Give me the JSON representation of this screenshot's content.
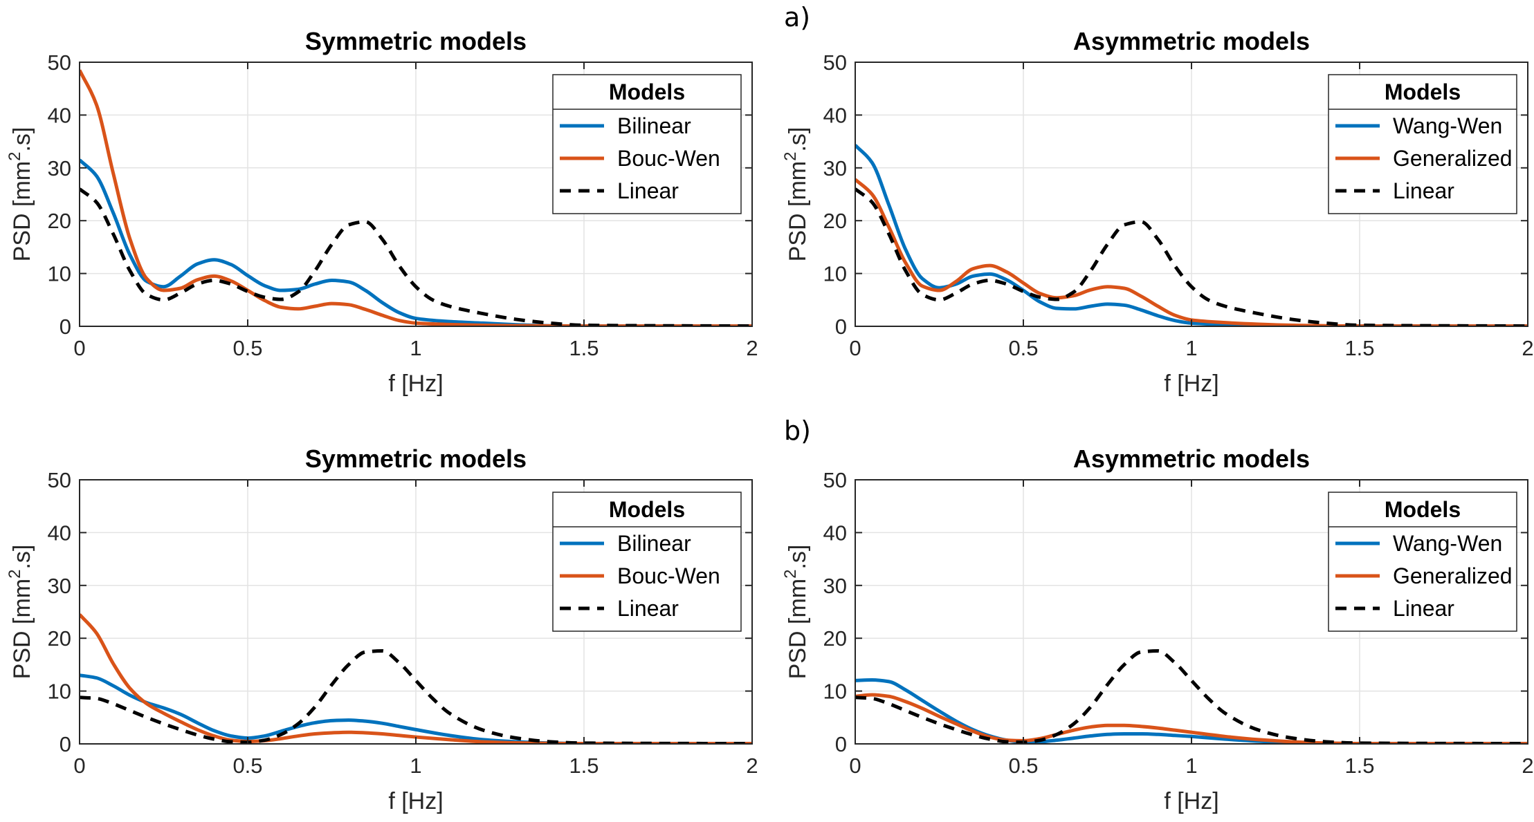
{
  "chart_data": [
    {
      "type": "line",
      "panel_label": "",
      "title": "Symmetric models",
      "xlabel": "f [Hz]",
      "ylabel_main": "PSD [mm",
      "ylabel_sup": "2",
      "ylabel_tail": ".s]",
      "xlim": [
        0,
        2
      ],
      "ylim": [
        0,
        50
      ],
      "xticks": [
        0,
        0.5,
        1,
        1.5,
        2
      ],
      "xtick_labels": [
        "0",
        "0.5",
        "1",
        "1.5",
        "2"
      ],
      "yticks": [
        0,
        10,
        20,
        30,
        40,
        50
      ],
      "ytick_labels": [
        "0",
        "10",
        "20",
        "30",
        "40",
        "50"
      ],
      "grid": true,
      "legend": {
        "title": "Models",
        "position": "top-right"
      },
      "series": [
        {
          "name": "Bilinear",
          "color": "#0072BD",
          "dash": "solid",
          "x": [
            0,
            0.05,
            0.1,
            0.15,
            0.2,
            0.25,
            0.3,
            0.35,
            0.4,
            0.45,
            0.5,
            0.55,
            0.6,
            0.65,
            0.7,
            0.75,
            0.8,
            0.85,
            0.9,
            0.95,
            1.0,
            1.1,
            1.2,
            1.3,
            1.4,
            1.5,
            2.0
          ],
          "y": [
            31.5,
            28.5,
            21.5,
            13.5,
            8.5,
            7.5,
            9.5,
            11.8,
            12.6,
            11.7,
            9.6,
            7.7,
            6.8,
            7.0,
            8.0,
            8.7,
            8.4,
            6.8,
            4.5,
            2.6,
            1.5,
            0.9,
            0.6,
            0.3,
            0.1,
            0.05,
            0.05
          ]
        },
        {
          "name": "Bouc-Wen",
          "color": "#D95319",
          "dash": "solid",
          "x": [
            0,
            0.05,
            0.1,
            0.15,
            0.2,
            0.25,
            0.3,
            0.35,
            0.4,
            0.45,
            0.5,
            0.55,
            0.6,
            0.65,
            0.7,
            0.75,
            0.8,
            0.85,
            0.9,
            0.95,
            1.0,
            1.1,
            1.2,
            1.3,
            1.4,
            1.5,
            2.0
          ],
          "y": [
            48.5,
            42.0,
            29.0,
            16.5,
            9.0,
            6.8,
            7.2,
            8.8,
            9.5,
            8.6,
            6.8,
            4.9,
            3.6,
            3.3,
            3.8,
            4.3,
            4.1,
            3.2,
            2.1,
            1.1,
            0.6,
            0.35,
            0.2,
            0.12,
            0.08,
            0.05,
            0.05
          ]
        },
        {
          "name": "Linear",
          "color": "#000000",
          "dash": "dashed",
          "x": [
            0,
            0.05,
            0.1,
            0.15,
            0.2,
            0.25,
            0.3,
            0.35,
            0.4,
            0.45,
            0.5,
            0.55,
            0.6,
            0.65,
            0.7,
            0.75,
            0.8,
            0.85,
            0.9,
            0.95,
            1.0,
            1.05,
            1.1,
            1.2,
            1.3,
            1.4,
            1.5,
            2.0
          ],
          "y": [
            26.0,
            23.5,
            17.5,
            10.5,
            6.0,
            5.0,
            6.3,
            8.0,
            8.7,
            8.0,
            6.6,
            5.5,
            5.1,
            6.5,
            10.5,
            15.5,
            19.2,
            19.8,
            16.5,
            11.5,
            7.5,
            5.0,
            3.8,
            2.4,
            1.3,
            0.6,
            0.2,
            0.05
          ]
        }
      ]
    },
    {
      "type": "line",
      "panel_label": "a)",
      "title": "Asymmetric models",
      "xlabel": "f [Hz]",
      "ylabel_main": "PSD [mm",
      "ylabel_sup": "2",
      "ylabel_tail": ".s]",
      "xlim": [
        0,
        2
      ],
      "ylim": [
        0,
        50
      ],
      "xticks": [
        0,
        0.5,
        1,
        1.5,
        2
      ],
      "xtick_labels": [
        "0",
        "0.5",
        "1",
        "1.5",
        "2"
      ],
      "yticks": [
        0,
        10,
        20,
        30,
        40,
        50
      ],
      "ytick_labels": [
        "0",
        "10",
        "20",
        "30",
        "40",
        "50"
      ],
      "grid": true,
      "legend": {
        "title": "Models",
        "position": "top-right"
      },
      "series": [
        {
          "name": "Wang-Wen",
          "color": "#0072BD",
          "dash": "solid",
          "x": [
            0,
            0.05,
            0.1,
            0.15,
            0.2,
            0.25,
            0.3,
            0.35,
            0.4,
            0.45,
            0.5,
            0.55,
            0.6,
            0.65,
            0.7,
            0.75,
            0.8,
            0.85,
            0.9,
            0.95,
            1.0,
            1.1,
            1.2,
            1.3,
            1.4,
            1.5,
            2.0
          ],
          "y": [
            34.3,
            31.0,
            23.0,
            14.5,
            9.0,
            7.3,
            8.0,
            9.5,
            9.9,
            8.8,
            6.8,
            4.6,
            3.4,
            3.3,
            3.8,
            4.2,
            4.0,
            3.1,
            2.0,
            1.1,
            0.6,
            0.35,
            0.2,
            0.1,
            0.05,
            0.05,
            0.05
          ]
        },
        {
          "name": "Generalized",
          "color": "#D95319",
          "dash": "solid",
          "x": [
            0,
            0.05,
            0.1,
            0.15,
            0.2,
            0.25,
            0.3,
            0.35,
            0.4,
            0.45,
            0.5,
            0.55,
            0.6,
            0.65,
            0.7,
            0.75,
            0.8,
            0.85,
            0.9,
            0.95,
            1.0,
            1.1,
            1.2,
            1.3,
            1.4,
            1.5,
            2.0
          ],
          "y": [
            27.8,
            25.0,
            18.8,
            12.0,
            7.6,
            6.8,
            8.5,
            10.9,
            11.5,
            10.3,
            8.2,
            6.2,
            5.4,
            5.8,
            6.9,
            7.5,
            7.2,
            5.7,
            3.8,
            2.1,
            1.2,
            0.7,
            0.4,
            0.2,
            0.1,
            0.05,
            0.05
          ]
        },
        {
          "name": "Linear",
          "color": "#000000",
          "dash": "dashed",
          "x": [
            0,
            0.05,
            0.1,
            0.15,
            0.2,
            0.25,
            0.3,
            0.35,
            0.4,
            0.45,
            0.5,
            0.55,
            0.6,
            0.65,
            0.7,
            0.75,
            0.8,
            0.85,
            0.9,
            0.95,
            1.0,
            1.05,
            1.1,
            1.2,
            1.3,
            1.4,
            1.5,
            2.0
          ],
          "y": [
            26.0,
            23.5,
            17.5,
            10.5,
            6.0,
            5.0,
            6.3,
            8.0,
            8.7,
            8.0,
            6.6,
            5.5,
            5.1,
            6.5,
            10.5,
            15.5,
            19.2,
            19.8,
            16.5,
            11.5,
            7.5,
            5.0,
            3.8,
            2.4,
            1.3,
            0.6,
            0.2,
            0.05
          ]
        }
      ]
    },
    {
      "type": "line",
      "panel_label": "",
      "title": "Symmetric models",
      "xlabel": "f [Hz]",
      "ylabel_main": "PSD [mm",
      "ylabel_sup": "2",
      "ylabel_tail": ".s]",
      "xlim": [
        0,
        2
      ],
      "ylim": [
        0,
        50
      ],
      "xticks": [
        0,
        0.5,
        1,
        1.5,
        2
      ],
      "xtick_labels": [
        "0",
        "0.5",
        "1",
        "1.5",
        "2"
      ],
      "yticks": [
        0,
        10,
        20,
        30,
        40,
        50
      ],
      "ytick_labels": [
        "0",
        "10",
        "20",
        "30",
        "40",
        "50"
      ],
      "grid": true,
      "legend": {
        "title": "Models",
        "position": "top-right"
      },
      "series": [
        {
          "name": "Bilinear",
          "color": "#0072BD",
          "dash": "solid",
          "x": [
            0,
            0.05,
            0.1,
            0.15,
            0.2,
            0.25,
            0.3,
            0.35,
            0.4,
            0.45,
            0.5,
            0.55,
            0.6,
            0.65,
            0.7,
            0.75,
            0.8,
            0.85,
            0.9,
            0.95,
            1.0,
            1.1,
            1.2,
            1.3,
            1.4,
            1.5,
            2.0
          ],
          "y": [
            13.0,
            12.5,
            11.0,
            9.2,
            7.8,
            6.8,
            5.6,
            4.0,
            2.5,
            1.5,
            1.1,
            1.5,
            2.4,
            3.3,
            4.0,
            4.4,
            4.5,
            4.3,
            3.9,
            3.3,
            2.7,
            1.6,
            0.8,
            0.4,
            0.15,
            0.05,
            0.05
          ]
        },
        {
          "name": "Bouc-Wen",
          "color": "#D95319",
          "dash": "solid",
          "x": [
            0,
            0.05,
            0.1,
            0.15,
            0.2,
            0.25,
            0.3,
            0.35,
            0.4,
            0.45,
            0.5,
            0.55,
            0.6,
            0.65,
            0.7,
            0.75,
            0.8,
            0.85,
            0.9,
            0.95,
            1.0,
            1.1,
            1.2,
            1.3,
            1.4,
            1.5,
            2.0
          ],
          "y": [
            24.5,
            21.0,
            15.2,
            10.5,
            7.6,
            5.8,
            4.2,
            2.7,
            1.5,
            0.7,
            0.45,
            0.6,
            1.0,
            1.5,
            1.9,
            2.1,
            2.2,
            2.1,
            1.9,
            1.6,
            1.3,
            0.8,
            0.4,
            0.2,
            0.1,
            0.05,
            0.05
          ]
        },
        {
          "name": "Linear",
          "color": "#000000",
          "dash": "dashed",
          "x": [
            0,
            0.05,
            0.1,
            0.15,
            0.2,
            0.25,
            0.3,
            0.35,
            0.4,
            0.45,
            0.5,
            0.55,
            0.6,
            0.65,
            0.7,
            0.75,
            0.8,
            0.85,
            0.9,
            0.95,
            1.0,
            1.05,
            1.1,
            1.2,
            1.3,
            1.4,
            1.5,
            2.0
          ],
          "y": [
            8.8,
            8.6,
            7.6,
            6.3,
            5.0,
            3.8,
            2.7,
            1.7,
            0.9,
            0.4,
            0.3,
            0.7,
            1.8,
            3.8,
            7.0,
            11.2,
            15.0,
            17.4,
            17.6,
            15.4,
            12.0,
            8.6,
            5.8,
            2.6,
            1.1,
            0.4,
            0.15,
            0.05
          ]
        }
      ]
    },
    {
      "type": "line",
      "panel_label": "b)",
      "title": "Asymmetric models",
      "xlabel": "f [Hz]",
      "ylabel_main": "PSD [mm",
      "ylabel_sup": "2",
      "ylabel_tail": ".s]",
      "xlim": [
        0,
        2
      ],
      "ylim": [
        0,
        50
      ],
      "xticks": [
        0,
        0.5,
        1,
        1.5,
        2
      ],
      "xtick_labels": [
        "0",
        "0.5",
        "1",
        "1.5",
        "2"
      ],
      "yticks": [
        0,
        10,
        20,
        30,
        40,
        50
      ],
      "ytick_labels": [
        "0",
        "10",
        "20",
        "30",
        "40",
        "50"
      ],
      "grid": true,
      "legend": {
        "title": "Models",
        "position": "top-right"
      },
      "series": [
        {
          "name": "Wang-Wen",
          "color": "#0072BD",
          "dash": "solid",
          "x": [
            0,
            0.05,
            0.1,
            0.15,
            0.2,
            0.25,
            0.3,
            0.35,
            0.4,
            0.45,
            0.5,
            0.55,
            0.6,
            0.65,
            0.7,
            0.75,
            0.8,
            0.85,
            0.9,
            0.95,
            1.0,
            1.1,
            1.2,
            1.3,
            1.4,
            1.5,
            2.0
          ],
          "y": [
            12.0,
            12.1,
            11.8,
            10.2,
            8.2,
            6.2,
            4.3,
            2.7,
            1.5,
            0.7,
            0.3,
            0.4,
            0.7,
            1.1,
            1.5,
            1.8,
            1.9,
            1.9,
            1.8,
            1.6,
            1.4,
            0.9,
            0.5,
            0.25,
            0.1,
            0.05,
            0.05
          ]
        },
        {
          "name": "Generalized",
          "color": "#D95319",
          "dash": "solid",
          "x": [
            0,
            0.05,
            0.1,
            0.15,
            0.2,
            0.25,
            0.3,
            0.35,
            0.4,
            0.45,
            0.5,
            0.55,
            0.6,
            0.65,
            0.7,
            0.75,
            0.8,
            0.85,
            0.9,
            0.95,
            1.0,
            1.1,
            1.2,
            1.3,
            1.4,
            1.5,
            2.0
          ],
          "y": [
            9.0,
            9.3,
            9.0,
            8.0,
            6.7,
            5.2,
            3.8,
            2.4,
            1.3,
            0.7,
            0.6,
            1.0,
            1.8,
            2.6,
            3.2,
            3.5,
            3.5,
            3.3,
            3.0,
            2.6,
            2.2,
            1.4,
            0.8,
            0.4,
            0.15,
            0.05,
            0.05
          ]
        },
        {
          "name": "Linear",
          "color": "#000000",
          "dash": "dashed",
          "x": [
            0,
            0.05,
            0.1,
            0.15,
            0.2,
            0.25,
            0.3,
            0.35,
            0.4,
            0.45,
            0.5,
            0.55,
            0.6,
            0.65,
            0.7,
            0.75,
            0.8,
            0.85,
            0.9,
            0.95,
            1.0,
            1.05,
            1.1,
            1.2,
            1.3,
            1.4,
            1.5,
            2.0
          ],
          "y": [
            8.8,
            8.6,
            7.6,
            6.3,
            5.0,
            3.8,
            2.7,
            1.7,
            0.9,
            0.4,
            0.3,
            0.7,
            1.8,
            3.8,
            7.0,
            11.2,
            15.0,
            17.4,
            17.6,
            15.4,
            12.0,
            8.6,
            5.8,
            2.6,
            1.1,
            0.4,
            0.15,
            0.05
          ]
        }
      ]
    }
  ]
}
